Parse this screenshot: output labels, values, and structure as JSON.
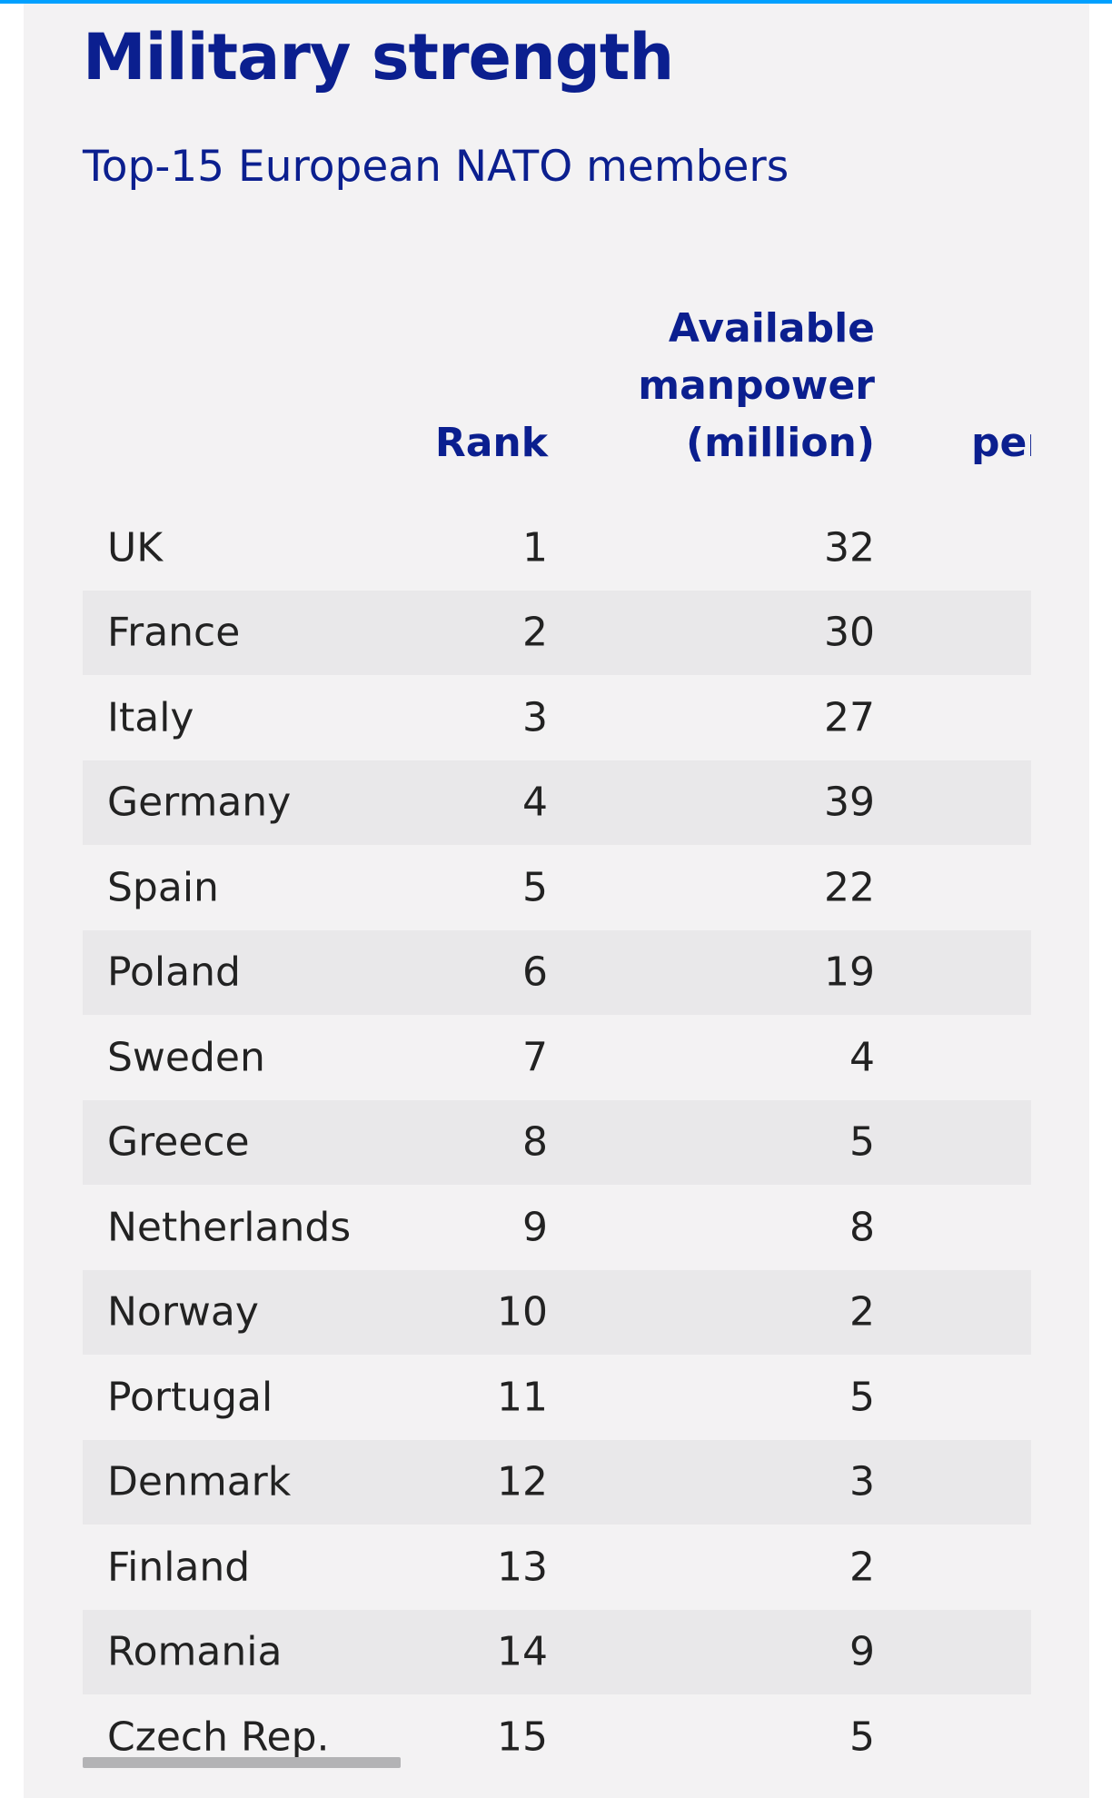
{
  "title": "Military strength",
  "subtitle": "Top-15 European NATO members",
  "table": {
    "headers": {
      "rank": "Rank",
      "manpower_line1": "Available",
      "manpower_line2": "manpower",
      "manpower_line3": "(million)",
      "third_partial": "per"
    },
    "rows": [
      {
        "country": "UK",
        "rank": "1",
        "manpower": "32"
      },
      {
        "country": "France",
        "rank": "2",
        "manpower": "30"
      },
      {
        "country": "Italy",
        "rank": "3",
        "manpower": "27"
      },
      {
        "country": "Germany",
        "rank": "4",
        "manpower": "39"
      },
      {
        "country": "Spain",
        "rank": "5",
        "manpower": "22"
      },
      {
        "country": "Poland",
        "rank": "6",
        "manpower": "19"
      },
      {
        "country": "Sweden",
        "rank": "7",
        "manpower": "4"
      },
      {
        "country": "Greece",
        "rank": "8",
        "manpower": "5"
      },
      {
        "country": "Netherlands",
        "rank": "9",
        "manpower": "8"
      },
      {
        "country": "Norway",
        "rank": "10",
        "manpower": "2"
      },
      {
        "country": "Portugal",
        "rank": "11",
        "manpower": "5"
      },
      {
        "country": "Denmark",
        "rank": "12",
        "manpower": "3"
      },
      {
        "country": "Finland",
        "rank": "13",
        "manpower": "2"
      },
      {
        "country": "Romania",
        "rank": "14",
        "manpower": "9"
      },
      {
        "country": "Czech Rep.",
        "rank": "15",
        "manpower": "5"
      }
    ]
  },
  "colors": {
    "accent": "#0b1f8f",
    "top_border": "#00a0ff",
    "background": "#f3f2f3",
    "row_shade": "#e9e8ea",
    "scrollbar": "#b3b3b5"
  }
}
